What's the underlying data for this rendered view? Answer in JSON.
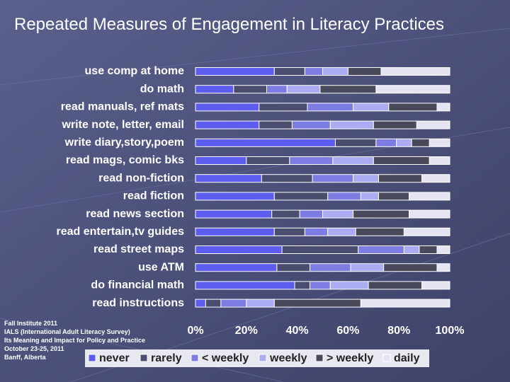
{
  "chart_data": {
    "type": "stacked-barh",
    "title": "Repeated Measures of Engagement in Literacy Practices",
    "categories": [
      "use comp at home",
      "do math",
      "read manuals, ref mats",
      "write note, letter, email",
      "write diary,story,poem",
      "read mags, comic bks",
      "read non-fiction",
      "read fiction",
      "read news section",
      "read entertain,tv guides",
      "read street maps",
      "use ATM",
      "do financial math",
      "read instructions"
    ],
    "series": [
      {
        "name": "never",
        "color": "#5c5cee",
        "values": [
          31,
          15,
          25,
          25,
          55,
          20,
          26,
          31,
          30,
          31,
          34,
          32,
          39,
          4
        ]
      },
      {
        "name": "rarely",
        "color": "#4b4d6e",
        "values": [
          12,
          13,
          19,
          13,
          16,
          17,
          20,
          21,
          11,
          12,
          30,
          13,
          6,
          6
        ]
      },
      {
        "name": "< weekly",
        "color": "#7c7ce2",
        "values": [
          7,
          8,
          18,
          15,
          8,
          17,
          16,
          13,
          9,
          9,
          18,
          16,
          8,
          10
        ]
      },
      {
        "name": "weekly",
        "color": "#acacf2",
        "values": [
          10,
          13,
          14,
          17,
          6,
          16,
          10,
          7,
          12,
          11,
          6,
          13,
          15,
          11
        ]
      },
      {
        "name": "> weekly",
        "color": "#484a5c",
        "values": [
          13,
          22,
          19,
          17,
          7,
          22,
          17,
          12,
          22,
          19,
          7,
          21,
          21,
          34
        ]
      },
      {
        "name": "daily",
        "color": "#e4e4f2",
        "values": [
          27,
          29,
          5,
          13,
          8,
          8,
          11,
          16,
          16,
          18,
          5,
          5,
          11,
          35
        ]
      }
    ],
    "xlim": [
      0,
      100
    ],
    "xticks": [
      {
        "value": 0,
        "label": "0%"
      },
      {
        "value": 20,
        "label": "20%"
      },
      {
        "value": 40,
        "label": "40%"
      },
      {
        "value": 60,
        "label": "60%"
      },
      {
        "value": 80,
        "label": "80%"
      },
      {
        "value": 100,
        "label": "100%"
      }
    ],
    "annotations": [
      "Fall Institute 2011",
      "IALS (International Adult Literacy Survey)",
      "Its Meaning and Impact for Policy and Practice",
      "October 23-25, 2011",
      "Banff, Alberta"
    ]
  }
}
